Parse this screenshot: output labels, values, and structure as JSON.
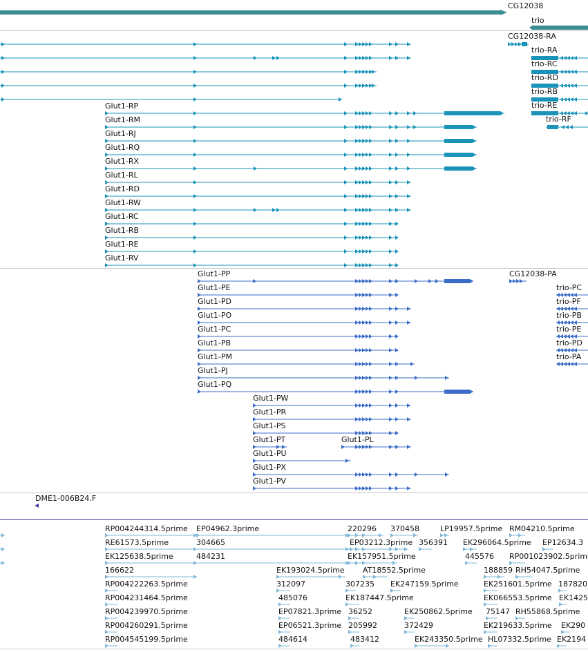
{
  "colors": {
    "gene": "#3a8e91",
    "mrna": "#1a93b9",
    "protein": "#3a6cc8",
    "clone": "#4a3da0",
    "est": "#7fb8da"
  },
  "genes": {
    "cg12038_label": "CG12038",
    "trio_label": "trio"
  },
  "transcripts": {
    "left": [
      {
        "label": "",
        "row": 0
      },
      {
        "label": "",
        "row": 1
      },
      {
        "label": "",
        "row": 2
      },
      {
        "label": "",
        "row": 3
      },
      {
        "label": "",
        "row": 4
      },
      {
        "label": "Glut1-RP",
        "row": 5
      },
      {
        "label": "Glut1-RM",
        "row": 6
      },
      {
        "label": "Glut1-RJ",
        "row": 7
      },
      {
        "label": "Glut1-RQ",
        "row": 8
      },
      {
        "label": "Glut1-RX",
        "row": 9
      },
      {
        "label": "Glut1-RL",
        "row": 10
      },
      {
        "label": "Glut1-RD",
        "row": 11
      },
      {
        "label": "Glut1-RW",
        "row": 12
      },
      {
        "label": "Glut1-RC",
        "row": 13
      },
      {
        "label": "Glut1-RB",
        "row": 14
      },
      {
        "label": "Glut1-RE",
        "row": 15
      },
      {
        "label": "Glut1-RV",
        "row": 16
      }
    ],
    "cg12038_ra": "CG12038-RA",
    "trio": [
      "trio-RA",
      "trio-RC",
      "trio-RD",
      "trio-RB",
      "trio-RE",
      "trio-RF"
    ]
  },
  "proteins": {
    "glut1": [
      "Glut1-PP",
      "Glut1-PE",
      "Glut1-PD",
      "Glut1-PO",
      "Glut1-PC",
      "Glut1-PB",
      "Glut1-PM",
      "Glut1-PJ",
      "Glut1-PQ",
      "Glut1-PW",
      "Glut1-PR",
      "Glut1-PS",
      "Glut1-PT",
      "Glut1-PU",
      "Glut1-PX",
      "Glut1-PV"
    ],
    "glut1_pl": "Glut1-PL",
    "cg12038_pa": "CG12038-PA",
    "trio": [
      "trio-PC",
      "trio-PF",
      "trio-PB",
      "trio-PE",
      "trio-PD",
      "trio-PA"
    ]
  },
  "clone": {
    "label": "DME1-006B24.F"
  },
  "ests": [
    "RP004244314.5prime",
    "EP04962.3prime",
    "220296",
    "370458",
    "LP19957.5prime",
    "RM04210.5prime",
    "RE61573.5prime",
    "304665",
    "EP03212.3prime",
    "356391",
    "EK296064.5prime",
    "EP12634.3",
    "EK125638.5prime",
    "484231",
    "EK157951.5prime",
    "445576",
    "RP001023902.5prime",
    "166622",
    "EK193024.5prime",
    "AT18552.5prime",
    "188859",
    "RH54047.5prime",
    "RP004222263.5prime",
    "312097",
    "307235",
    "EK247159.5prime",
    "EK251601.5prime",
    "187820",
    "RP004231464.5prime",
    "485076",
    "EK187447.5prime",
    "EK066553.5prime",
    "EK1425",
    "RP004239970.5prime",
    "EP07821.3prime",
    "36252",
    "EK250862.5prime",
    "75147",
    "RH55868.5prime",
    "RP004260291.5prime",
    "EP06521.3prime",
    "205992",
    "372429",
    "EK219633.5prime",
    "EK290",
    "RP004545199.5prime",
    "484614",
    "483412",
    "EK243350.5prime",
    "HL07332.5prime",
    "EK2194"
  ]
}
